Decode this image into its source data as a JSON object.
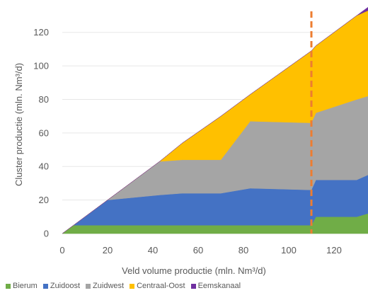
{
  "chart_data": {
    "type": "area",
    "stacked": true,
    "xlabel": "Veld volume productie (mln. Nm³/d)",
    "ylabel": "Cluster productie (mln. Nm³/d)",
    "xlim": [
      0,
      135
    ],
    "ylim": [
      0,
      130
    ],
    "xticks": [
      0,
      20,
      40,
      60,
      80,
      100,
      120
    ],
    "yticks": [
      0,
      20,
      40,
      60,
      80,
      100,
      120
    ],
    "grid": "horizontal",
    "legend_position": "bottom",
    "vertical_line": {
      "x": 110,
      "style": "dashed",
      "color": "#ED7D31"
    },
    "x": [
      0,
      5,
      20,
      43,
      53,
      70,
      83,
      110,
      112,
      130,
      135
    ],
    "series": [
      {
        "name": "Bierum",
        "color": "#70AD47",
        "values": [
          0,
          5,
          5,
          5,
          5,
          5,
          5,
          5,
          10,
          10,
          12
        ]
      },
      {
        "name": "Zuidoost",
        "color": "#4472C4",
        "values": [
          0,
          0,
          15,
          18,
          19,
          19,
          22,
          21,
          22,
          22,
          23
        ]
      },
      {
        "name": "Zuidwest",
        "color": "#A5A5A5",
        "values": [
          0,
          0,
          0,
          20,
          20,
          20,
          40,
          40,
          40,
          48,
          47
        ]
      },
      {
        "name": "Centraal-Oost",
        "color": "#FFC000",
        "values": [
          0,
          0,
          0,
          0,
          10,
          26,
          16,
          43,
          40,
          50,
          51
        ]
      },
      {
        "name": "Eemskanaal",
        "color": "#7030A0",
        "values": [
          0,
          0,
          0,
          0,
          0,
          0,
          0,
          0,
          0,
          0,
          2
        ]
      }
    ]
  }
}
